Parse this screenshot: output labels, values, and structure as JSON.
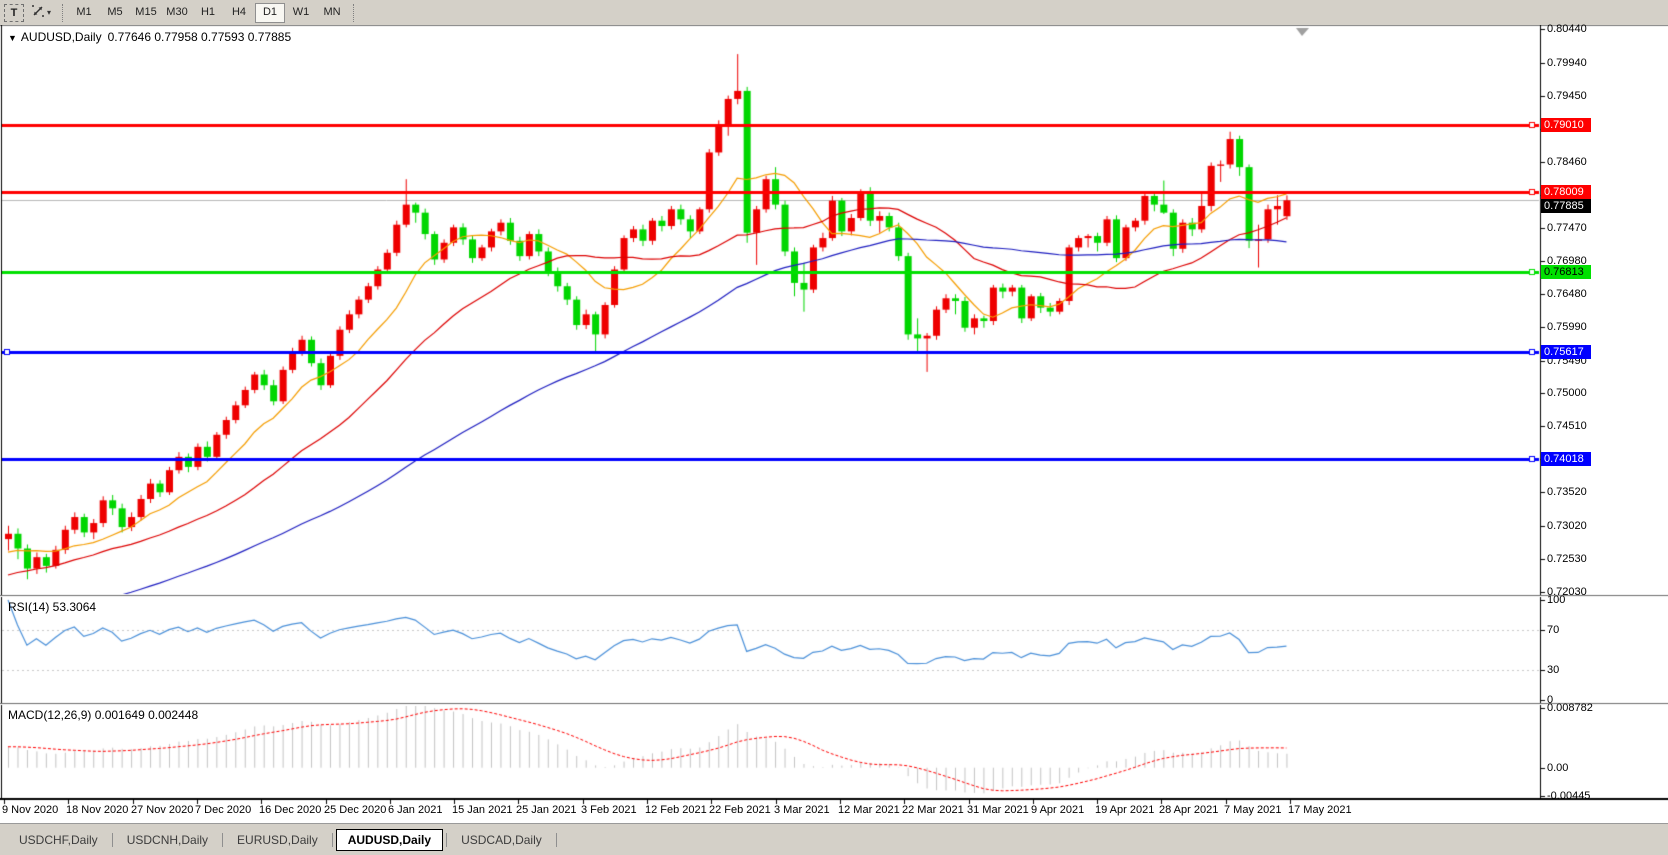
{
  "app": {
    "toolbar": {
      "text_tool_label": "T",
      "timeframes": [
        "M1",
        "M5",
        "M15",
        "M30",
        "H1",
        "H4",
        "D1",
        "W1",
        "MN"
      ],
      "active_timeframe": "D1"
    },
    "tabs": [
      "USDCHF,Daily",
      "USDCNH,Daily",
      "EURUSD,Daily",
      "AUDUSD,Daily",
      "USDCAD,Daily"
    ],
    "active_tab": "AUDUSD,Daily"
  },
  "chart_data": {
    "type": "candlestick",
    "symbol_label": "AUDUSD,Daily",
    "ohlc_display": "0.77646 0.77958 0.77593 0.77885",
    "open": 0.77646,
    "high": 0.77958,
    "low": 0.77593,
    "close": 0.77885,
    "bull_color": "#ee0000",
    "bear_color": "#00d600",
    "background": "#ffffff",
    "price_axis_labels": [
      "0.80440",
      "0.79940",
      "0.79450",
      "0.78950",
      "0.78460",
      "0.77960",
      "0.77470",
      "0.76980",
      "0.76480",
      "0.75990",
      "0.75490",
      "0.75000",
      "0.74510",
      "0.74020",
      "0.73520",
      "0.73020",
      "0.72530",
      "0.72030"
    ],
    "x_axis_labels": [
      "9 Nov 2020",
      "18 Nov 2020",
      "27 Nov 2020",
      "7 Dec 2020",
      "16 Dec 2020",
      "25 Dec 2020",
      "6 Jan 2021",
      "15 Jan 2021",
      "25 Jan 2021",
      "3 Feb 2021",
      "12 Feb 2021",
      "22 Feb 2021",
      "3 Mar 2021",
      "12 Mar 2021",
      "22 Mar 2021",
      "31 Mar 2021",
      "9 Apr 2021",
      "19 Apr 2021",
      "28 Apr 2021",
      "7 May 2021",
      "17 May 2021"
    ],
    "horizontal_lines": [
      {
        "price": 0.7901,
        "label": "0.79010",
        "color": "#ff0000",
        "label_text_color": "#ffffff"
      },
      {
        "price": 0.78009,
        "label": "0.78009",
        "color": "#ff0000",
        "label_text_color": "#ffffff"
      },
      {
        "price": 0.76813,
        "label": "0.76813",
        "color": "#00e000",
        "label_text_color": "#000000"
      },
      {
        "price": 0.75617,
        "label": "0.75617",
        "color": "#0000ff",
        "label_text_color": "#ffffff"
      },
      {
        "price": 0.74018,
        "label": "0.74018",
        "color": "#0000ff",
        "label_text_color": "#ffffff"
      }
    ],
    "current_price": {
      "value": 0.77885,
      "label": "0.77885",
      "badge_bg": "#000000",
      "badge_text": "#ffffff"
    },
    "moving_averages": [
      {
        "name": "fast",
        "period": 10,
        "color": "#f59d00"
      },
      {
        "name": "medium",
        "period": 25,
        "color": "#dd0000"
      },
      {
        "name": "slow",
        "period": 60,
        "color": "#1d1dc0"
      }
    ],
    "candles_ohlc": [
      [
        0.7282,
        0.7302,
        0.7265,
        0.729
      ],
      [
        0.729,
        0.7298,
        0.7252,
        0.7268
      ],
      [
        0.7268,
        0.7274,
        0.7222,
        0.7238
      ],
      [
        0.7238,
        0.7262,
        0.723,
        0.7255
      ],
      [
        0.7255,
        0.726,
        0.7232,
        0.7242
      ],
      [
        0.7242,
        0.7272,
        0.7238,
        0.7266
      ],
      [
        0.7266,
        0.7302,
        0.726,
        0.7296
      ],
      [
        0.7296,
        0.7322,
        0.729,
        0.7315
      ],
      [
        0.7315,
        0.732,
        0.7285,
        0.7292
      ],
      [
        0.7292,
        0.7312,
        0.7282,
        0.7306
      ],
      [
        0.7306,
        0.7346,
        0.73,
        0.734
      ],
      [
        0.734,
        0.7348,
        0.7318,
        0.7328
      ],
      [
        0.7328,
        0.7335,
        0.7292,
        0.73
      ],
      [
        0.73,
        0.7322,
        0.7294,
        0.7315
      ],
      [
        0.7315,
        0.7348,
        0.731,
        0.7342
      ],
      [
        0.7342,
        0.7372,
        0.7336,
        0.7365
      ],
      [
        0.7365,
        0.737,
        0.7345,
        0.7352
      ],
      [
        0.7352,
        0.739,
        0.7348,
        0.7385
      ],
      [
        0.7385,
        0.7412,
        0.738,
        0.7405
      ],
      [
        0.7405,
        0.741,
        0.7382,
        0.739
      ],
      [
        0.739,
        0.7425,
        0.7385,
        0.742
      ],
      [
        0.742,
        0.7428,
        0.7398,
        0.7405
      ],
      [
        0.7405,
        0.7442,
        0.74,
        0.7438
      ],
      [
        0.7438,
        0.7465,
        0.7432,
        0.746
      ],
      [
        0.746,
        0.7488,
        0.7455,
        0.7482
      ],
      [
        0.7482,
        0.751,
        0.7478,
        0.7505
      ],
      [
        0.7505,
        0.7532,
        0.75,
        0.7528
      ],
      [
        0.7528,
        0.7535,
        0.7505,
        0.7512
      ],
      [
        0.7512,
        0.752,
        0.7482,
        0.7488
      ],
      [
        0.7488,
        0.754,
        0.7484,
        0.7535
      ],
      [
        0.7535,
        0.7568,
        0.753,
        0.7562
      ],
      [
        0.7562,
        0.7586,
        0.7556,
        0.758
      ],
      [
        0.758,
        0.7585,
        0.754,
        0.7545
      ],
      [
        0.7545,
        0.7552,
        0.7505,
        0.7512
      ],
      [
        0.7512,
        0.756,
        0.7508,
        0.7556
      ],
      [
        0.7556,
        0.76,
        0.755,
        0.7595
      ],
      [
        0.7595,
        0.7624,
        0.759,
        0.7618
      ],
      [
        0.7618,
        0.7645,
        0.7612,
        0.764
      ],
      [
        0.764,
        0.7665,
        0.7635,
        0.766
      ],
      [
        0.766,
        0.769,
        0.7655,
        0.7685
      ],
      [
        0.7685,
        0.7715,
        0.768,
        0.771
      ],
      [
        0.771,
        0.7758,
        0.7705,
        0.7752
      ],
      [
        0.7752,
        0.782,
        0.7748,
        0.7782
      ],
      [
        0.7782,
        0.7785,
        0.7755,
        0.777
      ],
      [
        0.777,
        0.7776,
        0.773,
        0.7738
      ],
      [
        0.7738,
        0.7742,
        0.7692,
        0.77
      ],
      [
        0.77,
        0.773,
        0.7695,
        0.7725
      ],
      [
        0.7725,
        0.7752,
        0.772,
        0.7748
      ],
      [
        0.7748,
        0.7754,
        0.7722,
        0.773
      ],
      [
        0.773,
        0.7735,
        0.7695,
        0.7702
      ],
      [
        0.7702,
        0.7722,
        0.7698,
        0.7718
      ],
      [
        0.7718,
        0.7746,
        0.7712,
        0.7742
      ],
      [
        0.7742,
        0.776,
        0.7736,
        0.7755
      ],
      [
        0.7755,
        0.7762,
        0.7722,
        0.7728
      ],
      [
        0.7728,
        0.7734,
        0.7698,
        0.7705
      ],
      [
        0.7705,
        0.7742,
        0.77,
        0.7738
      ],
      [
        0.7738,
        0.7745,
        0.7705,
        0.7712
      ],
      [
        0.7712,
        0.7718,
        0.7675,
        0.7682
      ],
      [
        0.7682,
        0.7688,
        0.7652,
        0.766
      ],
      [
        0.766,
        0.7665,
        0.7632,
        0.764
      ],
      [
        0.764,
        0.7645,
        0.7595,
        0.7602
      ],
      [
        0.7602,
        0.7625,
        0.7596,
        0.7618
      ],
      [
        0.7618,
        0.7622,
        0.7562,
        0.7588
      ],
      [
        0.7588,
        0.7636,
        0.7582,
        0.7632
      ],
      [
        0.7632,
        0.769,
        0.7628,
        0.7685
      ],
      [
        0.7685,
        0.7736,
        0.768,
        0.7732
      ],
      [
        0.7732,
        0.775,
        0.7726,
        0.7745
      ],
      [
        0.7745,
        0.7752,
        0.772,
        0.7728
      ],
      [
        0.7728,
        0.7762,
        0.7722,
        0.7758
      ],
      [
        0.7758,
        0.7765,
        0.7742,
        0.775
      ],
      [
        0.775,
        0.778,
        0.7745,
        0.7775
      ],
      [
        0.7775,
        0.7782,
        0.7752,
        0.776
      ],
      [
        0.776,
        0.7766,
        0.7732,
        0.7742
      ],
      [
        0.7742,
        0.7778,
        0.7738,
        0.7775
      ],
      [
        0.7775,
        0.7865,
        0.777,
        0.786
      ],
      [
        0.786,
        0.7908,
        0.7855,
        0.7902
      ],
      [
        0.7902,
        0.7945,
        0.7885,
        0.794
      ],
      [
        0.794,
        0.8007,
        0.7932,
        0.7952
      ],
      [
        0.7952,
        0.7958,
        0.7725,
        0.774
      ],
      [
        0.774,
        0.778,
        0.7692,
        0.7775
      ],
      [
        0.7775,
        0.7825,
        0.777,
        0.782
      ],
      [
        0.782,
        0.7838,
        0.7775,
        0.7782
      ],
      [
        0.7782,
        0.7788,
        0.7705,
        0.7712
      ],
      [
        0.7712,
        0.7718,
        0.7645,
        0.7665
      ],
      [
        0.7665,
        0.7695,
        0.7622,
        0.7655
      ],
      [
        0.7655,
        0.7722,
        0.765,
        0.7718
      ],
      [
        0.7718,
        0.774,
        0.7712,
        0.7732
      ],
      [
        0.7732,
        0.7795,
        0.7728,
        0.7788
      ],
      [
        0.7788,
        0.7792,
        0.7735,
        0.7742
      ],
      [
        0.7742,
        0.7768,
        0.7736,
        0.7762
      ],
      [
        0.7762,
        0.7805,
        0.7758,
        0.78
      ],
      [
        0.78,
        0.7808,
        0.775,
        0.7758
      ],
      [
        0.7758,
        0.7772,
        0.774,
        0.7765
      ],
      [
        0.7765,
        0.777,
        0.7742,
        0.7748
      ],
      [
        0.7748,
        0.7755,
        0.7698,
        0.7705
      ],
      [
        0.7705,
        0.771,
        0.758,
        0.7588
      ],
      [
        0.7588,
        0.7612,
        0.7562,
        0.7582
      ],
      [
        0.7582,
        0.759,
        0.7532,
        0.7586
      ],
      [
        0.7586,
        0.763,
        0.758,
        0.7625
      ],
      [
        0.7625,
        0.7648,
        0.762,
        0.7642
      ],
      [
        0.7642,
        0.7648,
        0.7618,
        0.7638
      ],
      [
        0.7638,
        0.7644,
        0.7592,
        0.7598
      ],
      [
        0.7598,
        0.7618,
        0.7588,
        0.7612
      ],
      [
        0.7612,
        0.7616,
        0.7598,
        0.7608
      ],
      [
        0.7608,
        0.7662,
        0.7602,
        0.7658
      ],
      [
        0.7658,
        0.7664,
        0.7642,
        0.7652
      ],
      [
        0.7652,
        0.7662,
        0.7645,
        0.7658
      ],
      [
        0.7658,
        0.7662,
        0.7605,
        0.7612
      ],
      [
        0.7612,
        0.7648,
        0.7608,
        0.7645
      ],
      [
        0.7645,
        0.765,
        0.762,
        0.7628
      ],
      [
        0.7628,
        0.7635,
        0.7615,
        0.7622
      ],
      [
        0.7622,
        0.7642,
        0.7618,
        0.7638
      ],
      [
        0.7638,
        0.7722,
        0.7632,
        0.7718
      ],
      [
        0.7718,
        0.7736,
        0.7712,
        0.7732
      ],
      [
        0.7732,
        0.7738,
        0.7718,
        0.7735
      ],
      [
        0.7735,
        0.774,
        0.7712,
        0.7725
      ],
      [
        0.7725,
        0.7765,
        0.772,
        0.776
      ],
      [
        0.776,
        0.7766,
        0.7696,
        0.7702
      ],
      [
        0.7702,
        0.7752,
        0.7698,
        0.7748
      ],
      [
        0.7748,
        0.7762,
        0.7742,
        0.7758
      ],
      [
        0.7758,
        0.7798,
        0.7752,
        0.7795
      ],
      [
        0.7795,
        0.78,
        0.7772,
        0.7782
      ],
      [
        0.7782,
        0.7818,
        0.7768,
        0.777
      ],
      [
        0.777,
        0.7775,
        0.7705,
        0.7716
      ],
      [
        0.7716,
        0.776,
        0.771,
        0.7755
      ],
      [
        0.7755,
        0.7762,
        0.7735,
        0.7745
      ],
      [
        0.7745,
        0.78,
        0.774,
        0.778
      ],
      [
        0.778,
        0.7845,
        0.7772,
        0.784
      ],
      [
        0.784,
        0.7848,
        0.7816,
        0.7842
      ],
      [
        0.7842,
        0.7891,
        0.7836,
        0.788
      ],
      [
        0.788,
        0.7885,
        0.7825,
        0.7838
      ],
      [
        0.7838,
        0.7842,
        0.7717,
        0.7728
      ],
      [
        0.7728,
        0.7752,
        0.7688,
        0.773
      ],
      [
        0.773,
        0.7782,
        0.7725,
        0.7775
      ],
      [
        0.7775,
        0.7796,
        0.7752,
        0.778
      ],
      [
        0.77646,
        0.77958,
        0.77593,
        0.77885
      ]
    ],
    "indicators": {
      "rsi": {
        "header": "RSI(14) 53.3064",
        "period": 14,
        "value": "53.3064",
        "levels": [
          100,
          70,
          30,
          0
        ],
        "level_labels": [
          "100",
          "70",
          "30",
          "0"
        ],
        "line_color": "#4a90d9",
        "level_line_color": "#c9c9c9"
      },
      "macd": {
        "header": "MACD(12,26,9) 0.001649 0.002448",
        "params": "12,26,9",
        "macd_value": "0.001649",
        "signal_value": "0.002448",
        "scale_max_label": "0.008782",
        "scale_zero_label": "0.00",
        "scale_min_label": "-0.00445",
        "scale_max": 0.008782,
        "scale_min": -0.004455,
        "histogram_color": "#c4c4c4",
        "signal_color": "#ff0000"
      }
    }
  }
}
